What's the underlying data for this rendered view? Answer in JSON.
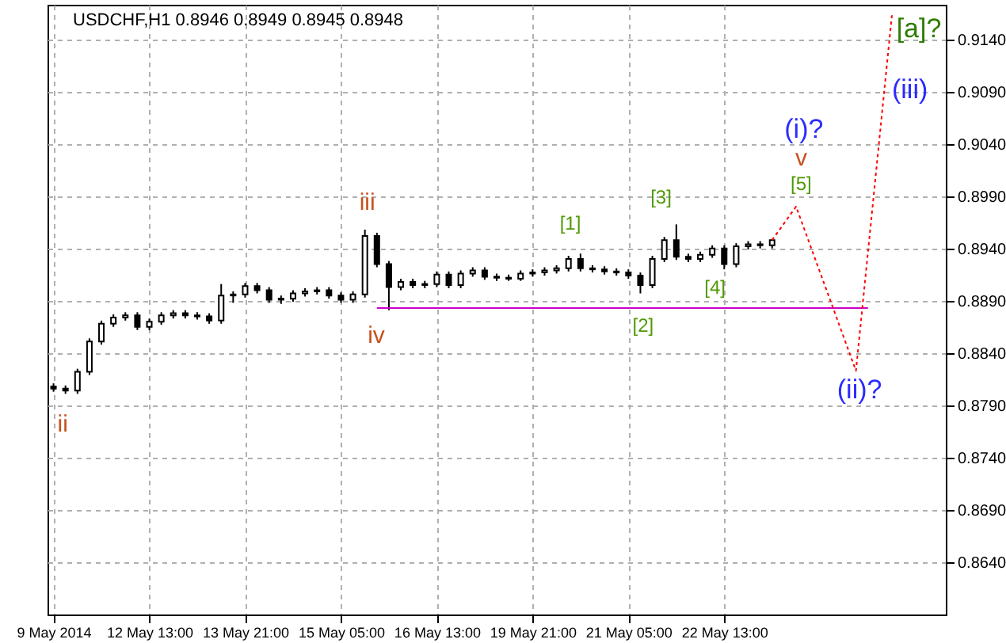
{
  "chart_data": {
    "type": "candlestick",
    "title": "USDCHF,H1  0.8946 0.8949 0.8945 0.8948",
    "color": "#000000",
    "categories": [
      "9 May 2014",
      null,
      null,
      null,
      null,
      null,
      null,
      null,
      "12 May 13:00",
      null,
      null,
      null,
      null,
      null,
      null,
      null,
      "13 May 21:00",
      null,
      null,
      null,
      null,
      null,
      null,
      null,
      "15 May 05:00",
      null,
      null,
      null,
      null,
      null,
      null,
      null,
      "16 May 13:00",
      null,
      null,
      null,
      null,
      null,
      null,
      null,
      "19 May 21:00",
      null,
      null,
      null,
      null,
      null,
      null,
      null,
      "21 May 05:00",
      null,
      null,
      null,
      null,
      null,
      null,
      null,
      "22 May 13:00",
      null,
      null,
      null,
      null,
      null,
      null,
      null,
      null,
      null,
      null,
      null,
      null,
      null,
      null,
      null,
      null,
      null,
      null
    ],
    "ohlc": [
      [
        0.8808,
        0.8811,
        0.8803,
        0.8806
      ],
      [
        0.8806,
        0.8809,
        0.8801,
        0.8804
      ],
      [
        0.8804,
        0.8825,
        0.8801,
        0.8822
      ],
      [
        0.8822,
        0.8854,
        0.8819,
        0.8851
      ],
      [
        0.8851,
        0.8871,
        0.8848,
        0.8868
      ],
      [
        0.8868,
        0.8877,
        0.8865,
        0.8874
      ],
      [
        0.8874,
        0.8879,
        0.8871,
        0.8876
      ],
      [
        0.8876,
        0.8879,
        0.8862,
        0.8865
      ],
      [
        0.8865,
        0.8873,
        0.8862,
        0.887
      ],
      [
        0.887,
        0.8879,
        0.8867,
        0.8876
      ],
      [
        0.8876,
        0.8881,
        0.8873,
        0.8878
      ],
      [
        0.8878,
        0.8881,
        0.8873,
        0.8876
      ],
      [
        0.8876,
        0.8879,
        0.8872,
        0.8875
      ],
      [
        0.8875,
        0.8878,
        0.8868,
        0.8871
      ],
      [
        0.8871,
        0.8906,
        0.8868,
        0.8895
      ],
      [
        0.8895,
        0.8899,
        0.8888,
        0.8896
      ],
      [
        0.8896,
        0.8907,
        0.8893,
        0.8904
      ],
      [
        0.8904,
        0.8907,
        0.8897,
        0.89
      ],
      [
        0.89,
        0.8903,
        0.8888,
        0.8891
      ],
      [
        0.8891,
        0.8895,
        0.8887,
        0.8892
      ],
      [
        0.8892,
        0.89,
        0.8889,
        0.8897
      ],
      [
        0.8897,
        0.8902,
        0.8894,
        0.8899
      ],
      [
        0.8899,
        0.8903,
        0.8896,
        0.89
      ],
      [
        0.89,
        0.8903,
        0.8892,
        0.8895
      ],
      [
        0.8895,
        0.8898,
        0.8888,
        0.8891
      ],
      [
        0.8891,
        0.8899,
        0.8888,
        0.8896
      ],
      [
        0.8896,
        0.8958,
        0.8893,
        0.8952
      ],
      [
        0.8952,
        0.8955,
        0.8922,
        0.8925
      ],
      [
        0.8925,
        0.8928,
        0.8881,
        0.8903
      ],
      [
        0.8903,
        0.8911,
        0.89,
        0.8908
      ],
      [
        0.8908,
        0.8911,
        0.8902,
        0.8905
      ],
      [
        0.8905,
        0.8909,
        0.8902,
        0.8906
      ],
      [
        0.8906,
        0.8918,
        0.8903,
        0.8915
      ],
      [
        0.8915,
        0.8918,
        0.8902,
        0.8905
      ],
      [
        0.8905,
        0.8919,
        0.8902,
        0.8916
      ],
      [
        0.8916,
        0.8922,
        0.8913,
        0.8919
      ],
      [
        0.8919,
        0.8922,
        0.891,
        0.8913
      ],
      [
        0.8913,
        0.8916,
        0.8909,
        0.8912
      ],
      [
        0.8912,
        0.8915,
        0.8909,
        0.8911
      ],
      [
        0.8911,
        0.8919,
        0.8909,
        0.8916
      ],
      [
        0.8916,
        0.892,
        0.8913,
        0.8917
      ],
      [
        0.8917,
        0.8922,
        0.8914,
        0.8919
      ],
      [
        0.8919,
        0.8924,
        0.8916,
        0.8921
      ],
      [
        0.8921,
        0.8933,
        0.8918,
        0.893
      ],
      [
        0.893,
        0.8935,
        0.8918,
        0.8921
      ],
      [
        0.8921,
        0.8924,
        0.8917,
        0.892
      ],
      [
        0.892,
        0.8923,
        0.8915,
        0.8918
      ],
      [
        0.8918,
        0.8921,
        0.8914,
        0.8917
      ],
      [
        0.8917,
        0.892,
        0.8911,
        0.8914
      ],
      [
        0.8914,
        0.8917,
        0.8897,
        0.8905
      ],
      [
        0.8905,
        0.8933,
        0.8902,
        0.893
      ],
      [
        0.893,
        0.8951,
        0.8927,
        0.8948
      ],
      [
        0.8948,
        0.8963,
        0.8929,
        0.8932
      ],
      [
        0.8932,
        0.8935,
        0.8927,
        0.893
      ],
      [
        0.893,
        0.8937,
        0.8927,
        0.8934
      ],
      [
        0.8934,
        0.8943,
        0.8931,
        0.894
      ],
      [
        0.894,
        0.8943,
        0.892,
        0.8925
      ],
      [
        0.8925,
        0.8945,
        0.8922,
        0.8942
      ],
      [
        0.8942,
        0.8947,
        0.8939,
        0.8944
      ],
      [
        0.8944,
        0.8947,
        0.894,
        0.8943
      ],
      [
        0.8943,
        0.8949,
        0.894,
        0.8948
      ],
      null,
      null,
      null,
      null,
      null,
      null,
      null,
      null,
      null,
      null,
      null,
      null,
      null,
      null
    ],
    "series": [
      {
        "type": "line",
        "color": "#cc00cc",
        "line_style": "solid",
        "values": [
          null,
          null,
          null,
          null,
          null,
          null,
          null,
          null,
          null,
          null,
          null,
          null,
          null,
          null,
          null,
          null,
          null,
          null,
          null,
          null,
          null,
          null,
          null,
          null,
          null,
          null,
          null,
          0.8883,
          0.8883,
          0.8883,
          0.8883,
          0.8883,
          0.8883,
          0.8883,
          0.8883,
          0.8883,
          0.8883,
          0.8883,
          0.8883,
          0.8883,
          0.8883,
          0.8883,
          0.8883,
          0.8883,
          0.8883,
          0.8883,
          0.8883,
          0.8883,
          0.8883,
          0.8883,
          0.8883,
          0.8883,
          0.8883,
          0.8883,
          0.8883,
          0.8883,
          0.8883,
          0.8883,
          0.8883,
          0.8883,
          0.8883,
          0.8883,
          0.8883,
          0.8883,
          0.8883,
          0.8883,
          0.8883,
          0.8883,
          0.8883,
          null,
          null,
          null,
          null,
          null,
          null
        ]
      },
      {
        "type": "line",
        "color": "#ff0000",
        "line_style": "dotted",
        "values": [
          null,
          null,
          null,
          null,
          null,
          null,
          null,
          null,
          null,
          null,
          null,
          null,
          null,
          null,
          null,
          null,
          null,
          null,
          null,
          null,
          null,
          null,
          null,
          null,
          null,
          null,
          null,
          null,
          null,
          null,
          null,
          null,
          null,
          null,
          null,
          null,
          null,
          null,
          null,
          null,
          null,
          null,
          null,
          null,
          null,
          null,
          null,
          null,
          null,
          null,
          null,
          null,
          null,
          null,
          null,
          null,
          null,
          null,
          null,
          null,
          0.8948,
          null,
          0.898,
          null,
          null,
          null,
          null,
          0.8823,
          null,
          null,
          0.9163,
          null,
          null,
          null,
          null
        ]
      }
    ],
    "ylim": [
      0.859,
      0.9173
    ],
    "yticks": [
      {
        "value": 0.864,
        "label": "0.8640"
      },
      {
        "value": 0.869,
        "label": "0.8690"
      },
      {
        "value": 0.874,
        "label": "0.8740"
      },
      {
        "value": 0.879,
        "label": "0.8790"
      },
      {
        "value": 0.884,
        "label": "0.8840"
      },
      {
        "value": 0.889,
        "label": "0.8890"
      },
      {
        "value": 0.894,
        "label": "0.8940"
      },
      {
        "value": 0.899,
        "label": "0.8990"
      },
      {
        "value": 0.904,
        "label": "0.9040"
      },
      {
        "value": 0.909,
        "label": "0.9090"
      },
      {
        "value": 0.914,
        "label": "0.9140"
      }
    ],
    "grid": true,
    "annotations": [
      "ii",
      "iii",
      "iv",
      "[1]",
      "[2]",
      "[3]",
      "[4]",
      "[5]",
      "v",
      "(i)?",
      "(ii)?",
      "(iii)",
      "[a]?"
    ]
  }
}
